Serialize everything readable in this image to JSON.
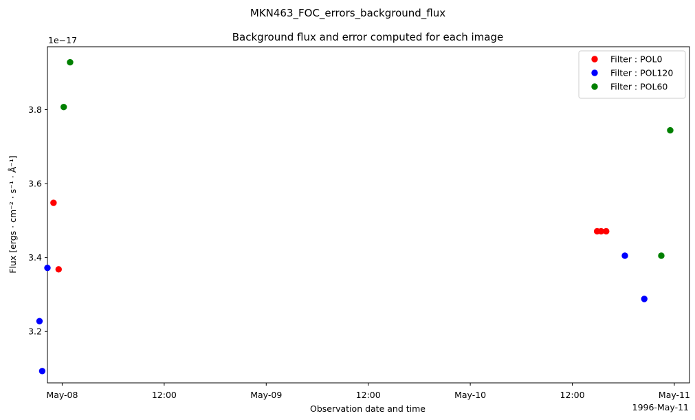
{
  "figure": {
    "suptitle": "MKN463_FOC_errors_background_flux"
  },
  "chart_data": {
    "type": "scatter",
    "title": "Background flux and error computed for each image",
    "xlabel": "Observation date and time",
    "ylabel": "Flux [ergs · cm⁻² · s⁻¹ · Å⁻¹]",
    "y_offset_label": "1e−17",
    "x_corner_label": "1996-May-11",
    "x_scale": "datetime",
    "xlim": [
      "1996-05-07T22:16",
      "1996-05-11T01:47"
    ],
    "ylim": [
      3.061,
      3.97
    ],
    "x_ticks": [
      {
        "value": "1996-05-08T00:00",
        "label": "May-08"
      },
      {
        "value": "1996-05-08T12:00",
        "label": "12:00"
      },
      {
        "value": "1996-05-09T00:00",
        "label": "May-09"
      },
      {
        "value": "1996-05-09T12:00",
        "label": "12:00"
      },
      {
        "value": "1996-05-10T00:00",
        "label": "May-10"
      },
      {
        "value": "1996-05-10T12:00",
        "label": "12:00"
      },
      {
        "value": "1996-05-11T00:00",
        "label": "May-11"
      }
    ],
    "y_ticks": [
      {
        "value": 3.2,
        "label": "3.2"
      },
      {
        "value": 3.4,
        "label": "3.4"
      },
      {
        "value": 3.6,
        "label": "3.6"
      },
      {
        "value": 3.8,
        "label": "3.8"
      }
    ],
    "grid": false,
    "legend_position": "top-right",
    "series": [
      {
        "name": "Filter : POL0",
        "color": "#ff0000",
        "points": [
          {
            "x": "1996-05-07T23:35",
            "y": 3.368
          },
          {
            "x": "1996-05-07T22:59",
            "y": 3.548
          },
          {
            "x": "1996-05-10T15:59",
            "y": 3.471
          },
          {
            "x": "1996-05-10T15:23",
            "y": 3.471
          },
          {
            "x": "1996-05-10T14:55",
            "y": 3.471
          }
        ]
      },
      {
        "name": "Filter : POL120",
        "color": "#0000ff",
        "points": [
          {
            "x": "1996-05-07T21:20",
            "y": 3.228
          },
          {
            "x": "1996-05-07T21:39",
            "y": 3.093
          },
          {
            "x": "1996-05-07T22:16",
            "y": 3.372
          },
          {
            "x": "1996-05-10T18:11",
            "y": 3.405
          },
          {
            "x": "1996-05-10T20:28",
            "y": 3.288
          }
        ]
      },
      {
        "name": "Filter : POL60",
        "color": "#008000",
        "points": [
          {
            "x": "1996-05-08T00:11",
            "y": 3.807
          },
          {
            "x": "1996-05-08T00:56",
            "y": 3.928
          },
          {
            "x": "1996-05-10T22:28",
            "y": 3.405
          },
          {
            "x": "1996-05-10T23:31",
            "y": 3.744
          }
        ]
      }
    ]
  }
}
